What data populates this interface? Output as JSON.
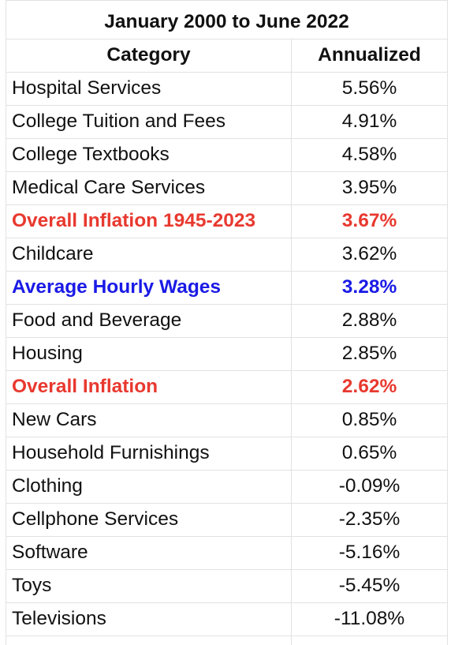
{
  "table": {
    "title": "January 2000 to June 2022",
    "headers": {
      "category": "Category",
      "annualized": "Annualized"
    },
    "highlight_colors": {
      "red": "#e8392f",
      "blue": "#1a1ae6"
    },
    "rows": [
      {
        "category": "Hospital Services",
        "annualized": "5.56%",
        "highlight": "none"
      },
      {
        "category": "College Tuition and Fees",
        "annualized": "4.91%",
        "highlight": "none"
      },
      {
        "category": "College Textbooks",
        "annualized": "4.58%",
        "highlight": "none"
      },
      {
        "category": "Medical Care Services",
        "annualized": "3.95%",
        "highlight": "none"
      },
      {
        "category": "Overall Inflation 1945-2023",
        "annualized": "3.67%",
        "highlight": "red"
      },
      {
        "category": "Childcare",
        "annualized": "3.62%",
        "highlight": "none"
      },
      {
        "category": "Average Hourly Wages",
        "annualized": "3.28%",
        "highlight": "blue"
      },
      {
        "category": "Food and Beverage",
        "annualized": "2.88%",
        "highlight": "none"
      },
      {
        "category": "Housing",
        "annualized": "2.85%",
        "highlight": "none"
      },
      {
        "category": "Overall Inflation",
        "annualized": "2.62%",
        "highlight": "red"
      },
      {
        "category": "New Cars",
        "annualized": "0.85%",
        "highlight": "none"
      },
      {
        "category": "Household Furnishings",
        "annualized": "0.65%",
        "highlight": "none"
      },
      {
        "category": "Clothing",
        "annualized": "-0.09%",
        "highlight": "none"
      },
      {
        "category": "Cellphone Services",
        "annualized": "-2.35%",
        "highlight": "none"
      },
      {
        "category": "Software",
        "annualized": "-5.16%",
        "highlight": "none"
      },
      {
        "category": "Toys",
        "annualized": "-5.45%",
        "highlight": "none"
      },
      {
        "category": "Televisions",
        "annualized": "-11.08%",
        "highlight": "none"
      }
    ]
  }
}
